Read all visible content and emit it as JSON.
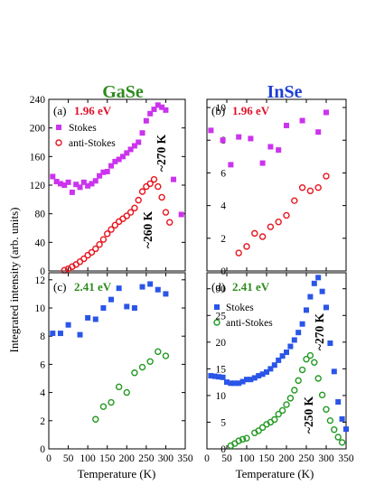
{
  "titles": {
    "left": "GaSe",
    "right": "InSe",
    "left_color": "#2e8b1e",
    "right_color": "#1f3fd6"
  },
  "ylabel": "Integrated intensity (arb. units)",
  "xlabel": "Temperature (K)",
  "colors": {
    "energy_red": "#e0102a",
    "energy_green": "#2e8b1e",
    "stokes_magenta": "#cc33ee",
    "antistokes_red": "#e8141e",
    "stokes_blue": "#2a55e8",
    "antistokes_green": "#229922"
  },
  "chart_data": [
    {
      "type": "scatter",
      "panel": "(a)",
      "energy": "1.96 eV",
      "xlim": [
        0,
        350
      ],
      "ylim": [
        0,
        240
      ],
      "xticks": [
        "0",
        "50",
        "100",
        "150",
        "200",
        "250",
        "300",
        "350"
      ],
      "yticks": [
        "0",
        "40",
        "80",
        "120",
        "160",
        "200",
        "240"
      ],
      "legend": [
        "Stokes",
        "anti-Stokes"
      ],
      "annotations": [
        "~270 K",
        "~260 K"
      ],
      "series": [
        {
          "name": "Stokes",
          "marker": "square",
          "color": "#cc33ee",
          "x": [
            10,
            20,
            30,
            40,
            50,
            60,
            70,
            80,
            90,
            100,
            110,
            120,
            130,
            140,
            150,
            160,
            170,
            180,
            190,
            200,
            210,
            220,
            230,
            240,
            250,
            260,
            270,
            280,
            290,
            300,
            320,
            340
          ],
          "y": [
            132,
            125,
            122,
            120,
            124,
            110,
            121,
            117,
            124,
            119,
            122,
            126,
            133,
            138,
            139,
            147,
            153,
            156,
            160,
            165,
            170,
            175,
            180,
            193,
            210,
            220,
            226,
            232,
            229,
            225,
            128,
            79
          ]
        },
        {
          "name": "anti-Stokes",
          "marker": "circle",
          "color": "#e8141e",
          "x": [
            40,
            50,
            60,
            70,
            80,
            90,
            100,
            110,
            120,
            130,
            140,
            150,
            160,
            170,
            180,
            190,
            200,
            210,
            220,
            230,
            240,
            250,
            260,
            270,
            280,
            290,
            300,
            310
          ],
          "y": [
            1,
            3,
            6,
            9,
            13,
            17,
            22,
            26,
            31,
            37,
            44,
            52,
            58,
            64,
            69,
            73,
            77,
            82,
            88,
            99,
            111,
            118,
            122,
            128,
            118,
            103,
            82,
            68
          ]
        }
      ]
    },
    {
      "type": "scatter",
      "panel": "(b)",
      "energy": "1.96 eV",
      "xlim": [
        0,
        350
      ],
      "ylim": [
        0,
        10.5
      ],
      "yticks": [
        "0",
        "2",
        "4",
        "6",
        "8",
        "10"
      ],
      "series": [
        {
          "name": "Stokes",
          "marker": "square",
          "color": "#cc33ee",
          "x": [
            10,
            40,
            60,
            80,
            110,
            140,
            160,
            180,
            200,
            240,
            280,
            300
          ],
          "y": [
            8.6,
            8.0,
            6.5,
            8.2,
            8.1,
            6.6,
            7.6,
            7.4,
            8.9,
            9.2,
            8.5,
            9.7
          ]
        },
        {
          "name": "anti-Stokes",
          "marker": "circle",
          "color": "#e8141e",
          "x": [
            80,
            100,
            120,
            140,
            160,
            180,
            200,
            220,
            240,
            260,
            280,
            300
          ],
          "y": [
            1.1,
            1.5,
            2.3,
            2.1,
            2.7,
            3.0,
            3.4,
            4.3,
            5.1,
            4.9,
            5.1,
            5.8
          ]
        }
      ]
    },
    {
      "type": "scatter",
      "panel": "(c)",
      "energy": "2.41 eV",
      "xlim": [
        0,
        350
      ],
      "ylim": [
        0,
        12.5
      ],
      "xticks": [
        "0",
        "50",
        "100",
        "150",
        "200",
        "250",
        "300",
        "350"
      ],
      "yticks": [
        "0",
        "2",
        "4",
        "6",
        "8",
        "10",
        "12"
      ],
      "series": [
        {
          "name": "Stokes",
          "marker": "square",
          "color": "#2a55e8",
          "x": [
            10,
            30,
            50,
            80,
            100,
            120,
            140,
            160,
            180,
            200,
            220,
            240,
            260,
            280,
            300
          ],
          "y": [
            8.2,
            8.2,
            8.8,
            8.1,
            9.3,
            9.2,
            10.0,
            10.6,
            11.4,
            10.1,
            10.0,
            11.5,
            11.7,
            11.3,
            11.0
          ]
        },
        {
          "name": "anti-Stokes",
          "marker": "circle",
          "color": "#229922",
          "x": [
            120,
            140,
            160,
            180,
            200,
            220,
            240,
            260,
            280,
            300
          ],
          "y": [
            2.1,
            3.0,
            3.3,
            4.4,
            4.0,
            5.4,
            5.8,
            6.2,
            6.9,
            6.6
          ]
        }
      ]
    },
    {
      "type": "scatter",
      "panel": "(d)",
      "energy": "2.41 eV",
      "xlim": [
        0,
        350
      ],
      "ylim": [
        0,
        33
      ],
      "xticks": [
        "0",
        "50",
        "100",
        "150",
        "200",
        "250",
        "300",
        "350"
      ],
      "yticks": [
        "0",
        "5",
        "10",
        "15",
        "20",
        "25",
        "30"
      ],
      "legend": [
        "Stokes",
        "anti-Stokes"
      ],
      "annotations": [
        "~270 K",
        "~250 K"
      ],
      "series": [
        {
          "name": "Stokes",
          "marker": "square",
          "color": "#2a55e8",
          "x": [
            10,
            20,
            30,
            40,
            50,
            60,
            70,
            80,
            90,
            100,
            110,
            120,
            130,
            140,
            150,
            160,
            170,
            180,
            190,
            200,
            210,
            220,
            230,
            240,
            250,
            260,
            270,
            280,
            290,
            300,
            310,
            320,
            330,
            340,
            350
          ],
          "y": [
            13.7,
            13.6,
            13.5,
            13.4,
            12.5,
            12.3,
            12.3,
            12.3,
            12.6,
            13.0,
            13.0,
            13.3,
            13.7,
            14.0,
            14.4,
            15.0,
            15.7,
            16.6,
            17.4,
            18.1,
            19.2,
            20.4,
            21.8,
            23.4,
            26.0,
            28.5,
            31.0,
            32.1,
            29.5,
            26.5,
            19.8,
            14.5,
            8.8,
            5.6,
            3.7
          ]
        },
        {
          "name": "anti-Stokes",
          "marker": "circle",
          "color": "#229922",
          "x": [
            60,
            70,
            80,
            90,
            100,
            120,
            130,
            140,
            150,
            160,
            170,
            180,
            190,
            200,
            210,
            220,
            230,
            240,
            250,
            260,
            270,
            280,
            290,
            300,
            310,
            320,
            330,
            340
          ],
          "y": [
            0.6,
            1.0,
            1.5,
            1.8,
            2.0,
            3.0,
            3.4,
            4.0,
            4.6,
            5.0,
            5.5,
            6.5,
            7.2,
            8.3,
            9.5,
            11.0,
            12.8,
            14.8,
            16.8,
            17.5,
            16.2,
            13.2,
            10.1,
            7.4,
            5.3,
            3.6,
            2.2,
            1.2
          ]
        }
      ]
    }
  ]
}
